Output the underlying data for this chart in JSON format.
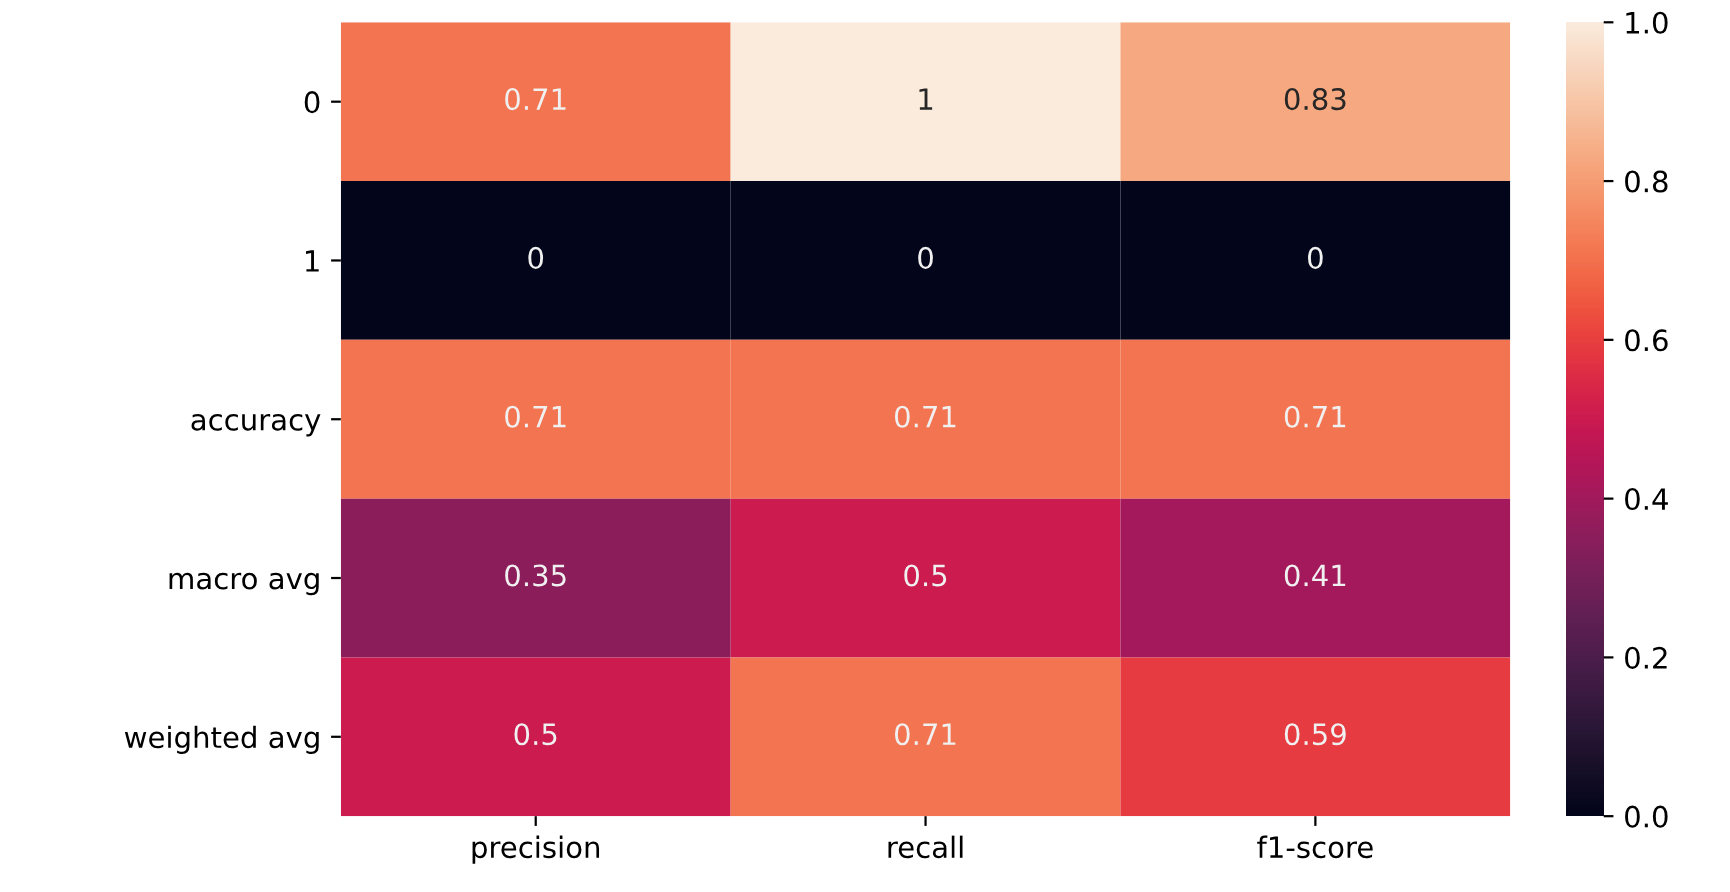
{
  "chart_data": {
    "type": "heatmap",
    "categories": [
      "precision",
      "recall",
      "f1-score"
    ],
    "y_categories": [
      "0",
      "1",
      "accuracy",
      "macro avg",
      "weighted avg"
    ],
    "cells": [
      [
        0.71,
        1,
        0.83
      ],
      [
        0,
        0,
        0
      ],
      [
        0.71,
        0.71,
        0.71
      ],
      [
        0.35,
        0.5,
        0.41
      ],
      [
        0.5,
        0.71,
        0.59
      ]
    ],
    "data_labels": true,
    "clim": [
      0,
      1
    ],
    "cticks": [
      {
        "value": 0,
        "label": "0.0"
      },
      0.2,
      0.4,
      0.6,
      0.8,
      {
        "value": 1,
        "label": "1.0"
      }
    ],
    "grid": false
  }
}
